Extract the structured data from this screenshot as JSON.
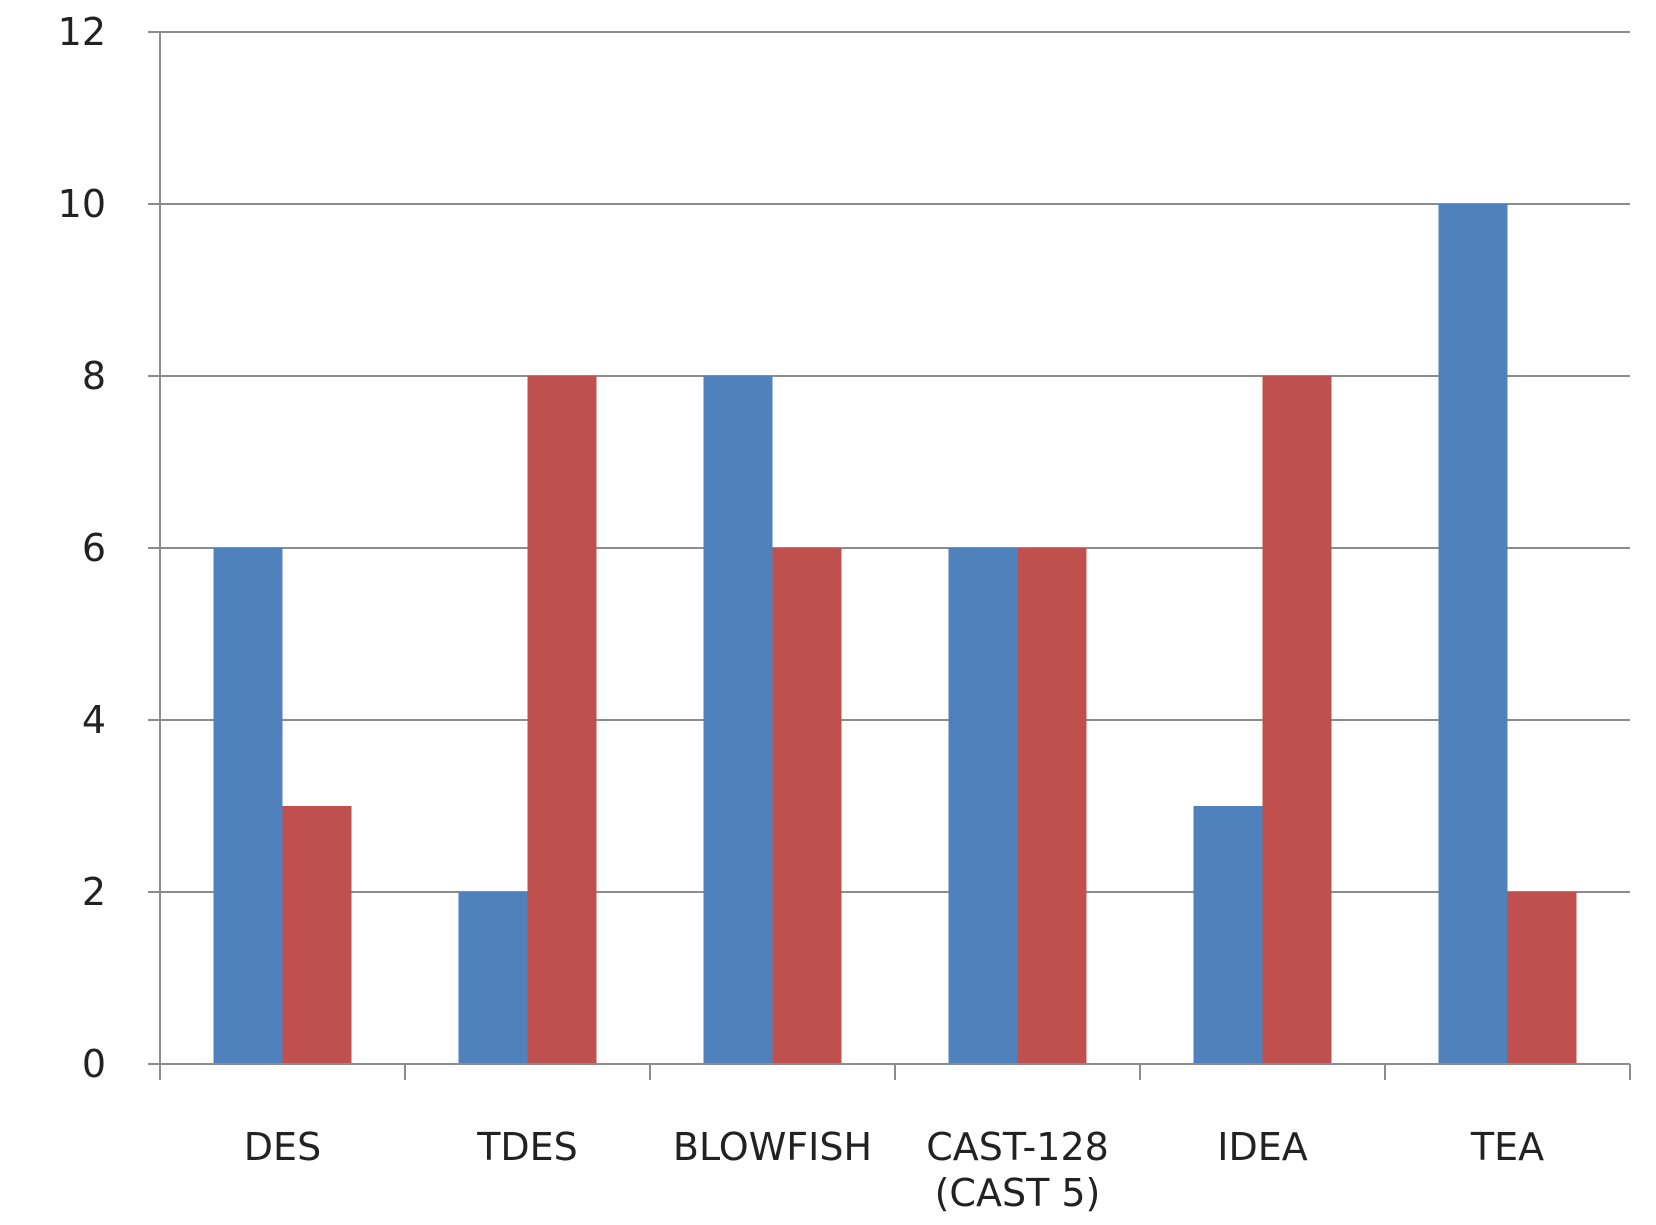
{
  "chart_data": {
    "type": "bar",
    "title": "",
    "xlabel": "",
    "ylabel": "",
    "categories": [
      "DES",
      "TDES",
      "BLOWFISH",
      "CAST-128\n(CAST 5)",
      "IDEA",
      "TEA"
    ],
    "series": [
      {
        "values": [
          6,
          2,
          8,
          6,
          3,
          10
        ],
        "color": "#4f81bd"
      },
      {
        "values": [
          3,
          8,
          6,
          6,
          8,
          2
        ],
        "color": "#c0504d"
      }
    ],
    "ylim": [
      0,
      12
    ],
    "yticks": [
      "0",
      "2",
      "4",
      "6",
      "8",
      "10",
      "12"
    ],
    "grid": true,
    "legend": "none",
    "colors": {
      "axis": "#8c8c8c",
      "grid": "#8c8c8c",
      "text": "#222222"
    }
  }
}
